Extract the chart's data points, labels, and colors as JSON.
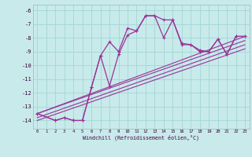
{
  "background_color": "#c8eaea",
  "grid_color": "#a8d8d8",
  "line_color": "#993399",
  "xlabel": "Windchill (Refroidissement éolien,°C)",
  "xlim": [
    -0.5,
    23.5
  ],
  "ylim": [
    -14.6,
    -5.6
  ],
  "yticks": [
    -14,
    -13,
    -12,
    -11,
    -10,
    -9,
    -8,
    -7,
    -6
  ],
  "xticks": [
    0,
    1,
    2,
    3,
    4,
    5,
    6,
    7,
    8,
    9,
    10,
    11,
    12,
    13,
    14,
    15,
    16,
    17,
    18,
    19,
    20,
    21,
    22,
    23
  ],
  "curve1_x": [
    0,
    2,
    3,
    4,
    5,
    6,
    7,
    8,
    9,
    10,
    11,
    12,
    13,
    14,
    15,
    16,
    17,
    18,
    19,
    20,
    21,
    22,
    23
  ],
  "curve1_y": [
    -13.5,
    -14.0,
    -13.8,
    -14.0,
    -14.0,
    -11.6,
    -9.3,
    -11.5,
    -9.2,
    -7.8,
    -7.5,
    -6.4,
    -6.4,
    -6.7,
    -6.7,
    -8.4,
    -8.5,
    -8.9,
    -9.0,
    -8.1,
    -9.2,
    -7.9,
    -7.9
  ],
  "curve2_x": [
    0,
    2,
    3,
    4,
    5,
    6,
    7,
    8,
    9,
    10,
    11,
    12,
    13,
    14,
    15,
    16,
    17,
    18,
    19,
    20,
    21,
    22,
    23
  ],
  "curve2_y": [
    -13.5,
    -14.0,
    -13.8,
    -14.0,
    -14.0,
    -11.6,
    -9.3,
    -8.3,
    -9.0,
    -7.3,
    -7.5,
    -6.4,
    -6.4,
    -8.0,
    -6.7,
    -8.5,
    -8.5,
    -9.0,
    -9.0,
    -8.1,
    -9.2,
    -7.9,
    -7.9
  ],
  "trend_lines": [
    {
      "x": [
        0,
        23
      ],
      "y": [
        -13.5,
        -7.9
      ]
    },
    {
      "x": [
        0,
        23
      ],
      "y": [
        -13.5,
        -8.2
      ]
    },
    {
      "x": [
        0,
        23
      ],
      "y": [
        -13.8,
        -8.5
      ]
    },
    {
      "x": [
        0,
        23
      ],
      "y": [
        -14.0,
        -8.8
      ]
    }
  ]
}
